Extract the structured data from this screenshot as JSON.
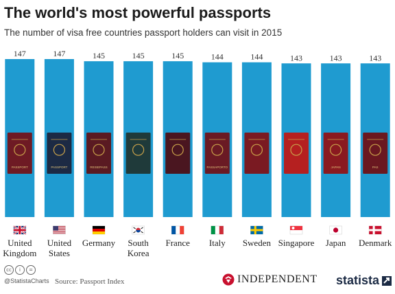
{
  "header": {
    "title": "The world's most powerful passports",
    "subtitle": "The number of visa free countries passport holders can visit in 2015"
  },
  "chart_data": {
    "type": "bar",
    "title": "The world's most powerful passports",
    "subtitle": "The number of visa free countries passport holders can visit in 2015",
    "categories": [
      "United Kingdom",
      "United States",
      "Germany",
      "South Korea",
      "France",
      "Italy",
      "Sweden",
      "Singapore",
      "Japan",
      "Denmark"
    ],
    "category_lines": [
      [
        "United",
        "Kingdom"
      ],
      [
        "United",
        "States"
      ],
      [
        "Germany"
      ],
      [
        "South",
        "Korea"
      ],
      [
        "France"
      ],
      [
        "Italy"
      ],
      [
        "Sweden"
      ],
      [
        "Singapore"
      ],
      [
        "Japan"
      ],
      [
        "Denmark"
      ]
    ],
    "values": [
      147,
      147,
      145,
      145,
      145,
      144,
      144,
      143,
      143,
      143
    ],
    "bar_color": "#1f9bd0",
    "passport_colors": [
      "#6e1a24",
      "#1c2a44",
      "#5a1a22",
      "#1f3a3a",
      "#4a1620",
      "#6a1a24",
      "#7a1a22",
      "#b52020",
      "#8a1a20",
      "#6a1820"
    ],
    "passport_labels": [
      "PASSPORT",
      "PASSPORT",
      "REISEPASS",
      "",
      "",
      "PASSAPORTO",
      "",
      "",
      "JAPAN",
      "PAS"
    ],
    "flags": [
      "uk",
      "us",
      "de",
      "kr",
      "fr",
      "it",
      "se",
      "sg",
      "jp",
      "dk"
    ],
    "ylim": [
      0,
      147
    ],
    "grid": false
  },
  "footer": {
    "handle": "@StatistaCharts",
    "source": "Source: Passport Index",
    "brand1": "INDEPENDENT",
    "brand2": "statista",
    "license_icons": [
      "cc",
      "i",
      "="
    ]
  }
}
